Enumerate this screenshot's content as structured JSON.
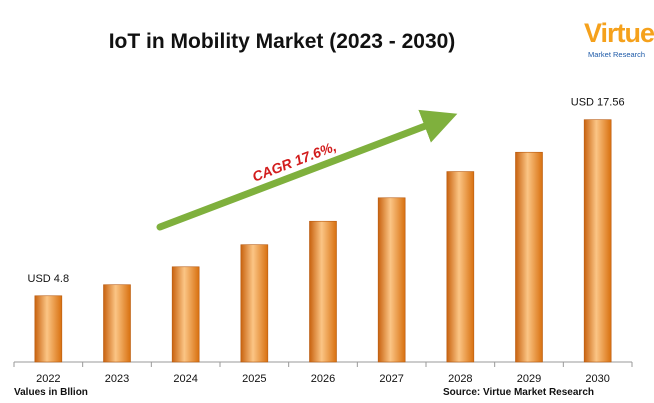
{
  "chart_data": {
    "type": "bar",
    "title": "IoT in Mobility Market (2023 - 2030)",
    "categories": [
      "2022",
      "2023",
      "2024",
      "2025",
      "2026",
      "2027",
      "2028",
      "2029",
      "2030"
    ],
    "values": [
      4.8,
      5.6,
      6.9,
      8.5,
      10.2,
      11.9,
      13.8,
      15.2,
      17.56
    ],
    "data_labels": {
      "first": "USD 4.8",
      "last": "USD 17.56"
    },
    "annotation": "CAGR 17.6%,",
    "ylim": [
      0,
      20
    ],
    "grid": false,
    "colors": {
      "bar_light": "#fbc585",
      "bar_mid": "#f49a3f",
      "bar_dark": "#c8620f",
      "arrow": "#7fb03d",
      "annotation": "#d21c1c"
    }
  },
  "footer": {
    "units_note": "Values in Bllion",
    "source": "Source: Virtue Market Research"
  },
  "logo": {
    "word": "Virtue",
    "subtitle": "Market Research",
    "colors": {
      "word": "#f5a11c",
      "sub": "#1d5aa8"
    }
  }
}
